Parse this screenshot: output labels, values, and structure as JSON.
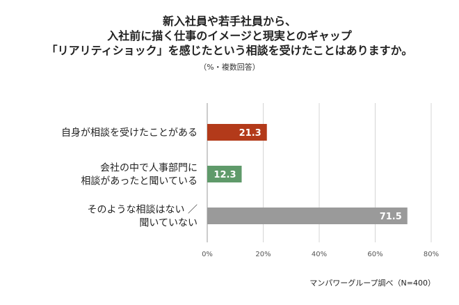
{
  "chart_data": {
    "type": "bar",
    "orientation": "horizontal",
    "title_lines": [
      "新入社員や若手社員から、",
      "入社前に描く仕事のイメージと現実とのギャップ",
      "「リアリティショック」を感じたという相談を受けたことはありますか。"
    ],
    "subtitle": "（%・複数回答）",
    "categories": [
      [
        "自身が相談を受けたことがある"
      ],
      [
        "会社の中で人事部門に",
        "相談があったと聞いている"
      ],
      [
        "そのような相談はない ／",
        "聞いていない"
      ]
    ],
    "values": [
      21.3,
      12.3,
      71.5
    ],
    "value_labels": [
      "21.3",
      "12.3",
      "71.5"
    ],
    "bar_colors": [
      "#b33a1a",
      "#5f9a6a",
      "#9a9a9a"
    ],
    "xlim": [
      0,
      80
    ],
    "xticks": [
      0,
      20,
      40,
      60,
      80
    ],
    "xtick_labels": [
      "0%",
      "20%",
      "40%",
      "60%",
      "80%"
    ],
    "grid": true,
    "source": "マンパワーグループ調べ（N=400）"
  }
}
